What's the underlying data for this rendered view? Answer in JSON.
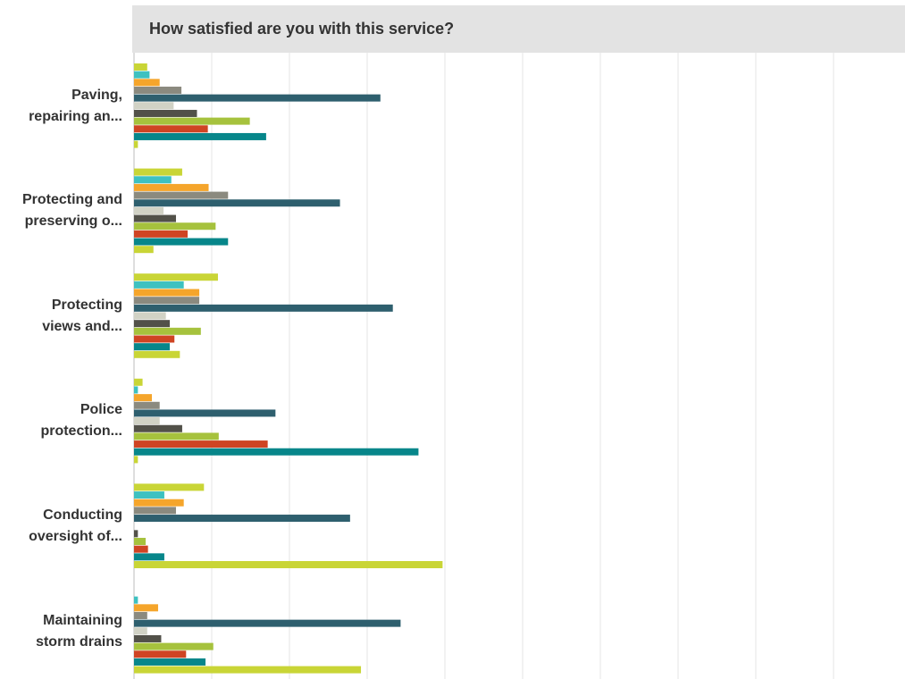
{
  "header": {
    "title": "How satisfied are you with this service?"
  },
  "colors": [
    "#c9d536",
    "#3ec1c0",
    "#f5a52b",
    "#8b8a7f",
    "#2e5f6e",
    "#d1d2c5",
    "#525149",
    "#a6c23d",
    "#cf4423",
    "#07868a",
    "#c9d536"
  ],
  "chart_data": {
    "type": "bar",
    "orientation": "horizontal",
    "xlim": [
      0,
      100
    ],
    "grid": true,
    "categories": [
      {
        "lines": [
          "Paving,",
          "repairing an..."
        ]
      },
      {
        "lines": [
          "Protecting and",
          "preserving o..."
        ]
      },
      {
        "lines": [
          "Protecting",
          "views and..."
        ]
      },
      {
        "lines": [
          "Police",
          "protection..."
        ]
      },
      {
        "lines": [
          "Conducting",
          "oversight of..."
        ]
      },
      {
        "lines": [
          "Maintaining",
          "storm drains"
        ]
      }
    ],
    "series": [
      {
        "values": [
          1.7,
          6.2,
          10.8,
          1.1,
          9.0,
          0.0
        ]
      },
      {
        "values": [
          2.0,
          4.8,
          6.4,
          0.5,
          3.9,
          0.5
        ]
      },
      {
        "values": [
          3.3,
          9.6,
          8.4,
          2.3,
          6.4,
          3.1
        ]
      },
      {
        "values": [
          6.1,
          12.1,
          8.4,
          3.3,
          5.4,
          1.7
        ]
      },
      {
        "values": [
          31.7,
          26.5,
          33.3,
          18.2,
          27.8,
          34.3
        ]
      },
      {
        "values": [
          5.1,
          3.8,
          4.1,
          3.3,
          0.0,
          1.7
        ]
      },
      {
        "values": [
          8.1,
          5.4,
          4.6,
          6.2,
          0.5,
          3.5
        ]
      },
      {
        "values": [
          14.9,
          10.5,
          8.6,
          10.9,
          1.5,
          10.2
        ]
      },
      {
        "values": [
          9.5,
          6.9,
          5.2,
          17.2,
          1.8,
          6.7
        ]
      },
      {
        "values": [
          17.0,
          12.1,
          4.6,
          36.6,
          3.9,
          9.2
        ]
      },
      {
        "values": [
          0.5,
          2.5,
          5.9,
          0.5,
          39.7,
          29.2
        ]
      }
    ]
  }
}
